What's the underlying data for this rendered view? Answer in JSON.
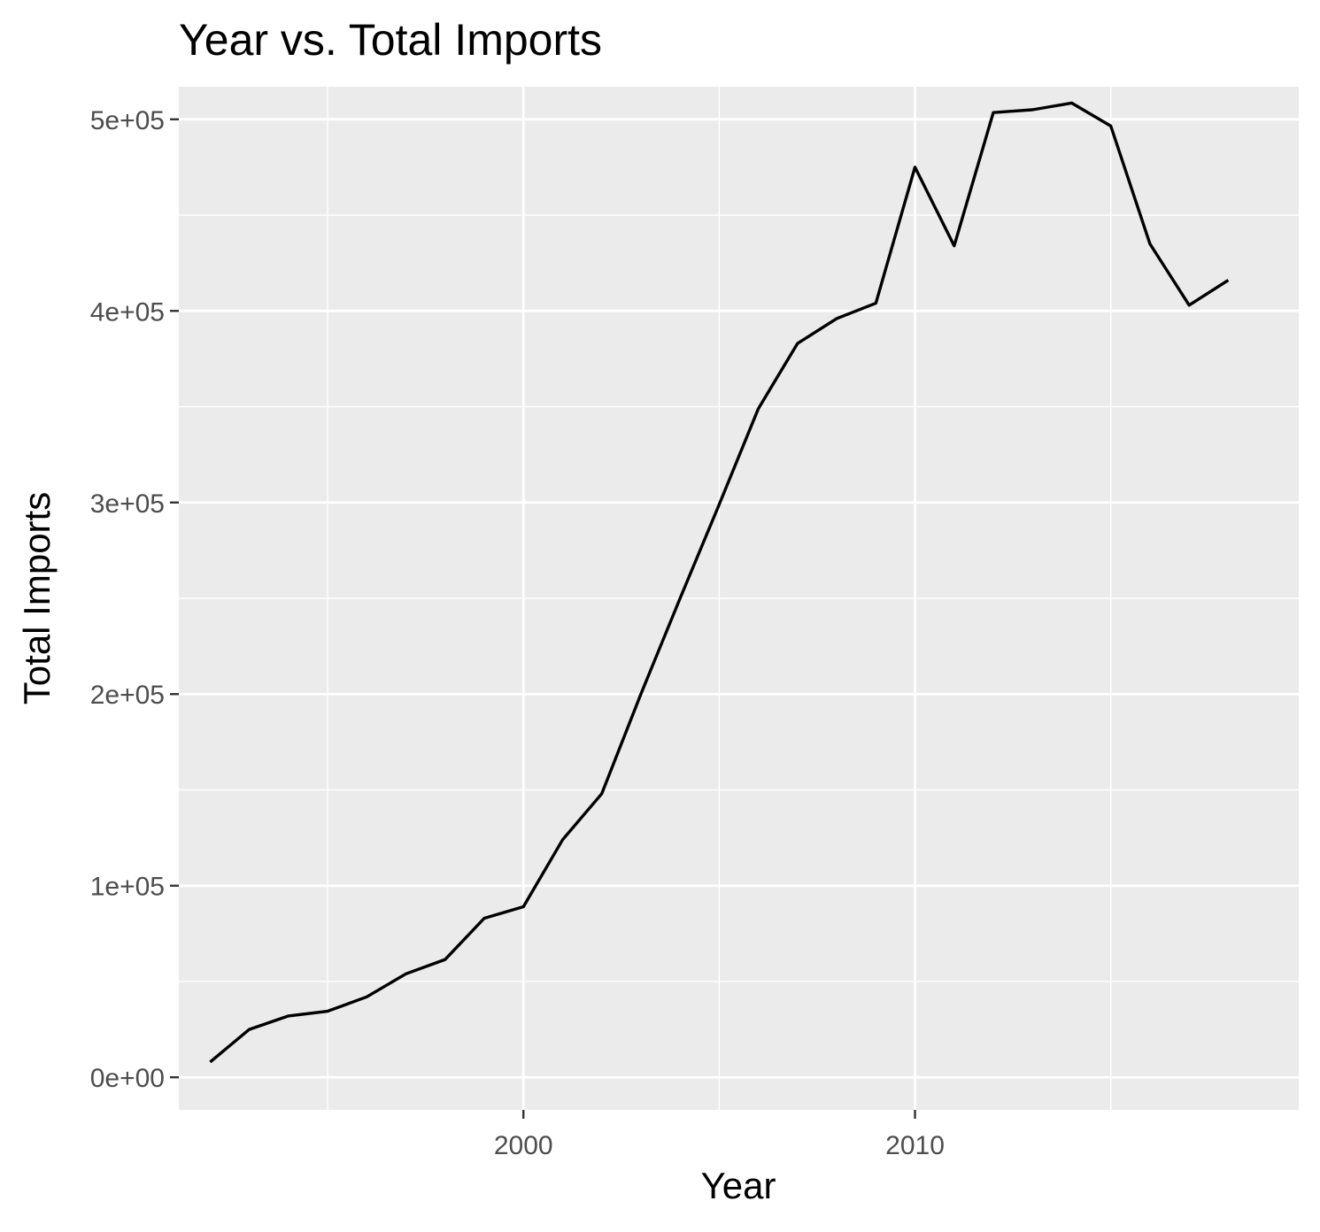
{
  "chart_data": {
    "type": "line",
    "title": "Year vs. Total Imports",
    "xlabel": "Year",
    "ylabel": "Total Imports",
    "x_ticks": [
      2000,
      2010
    ],
    "x_tick_labels": [
      "2000",
      "2010"
    ],
    "y_ticks": [
      0,
      100000,
      200000,
      300000,
      400000,
      500000
    ],
    "y_tick_labels": [
      "0e+00",
      "1e+05",
      "2e+05",
      "3e+05",
      "4e+05",
      "5e+05"
    ],
    "xlim": [
      1991.2,
      2019.8
    ],
    "ylim": [
      -17000,
      517000
    ],
    "grid": true,
    "legend": "none",
    "colors": {
      "panel_background": "#ebebeb",
      "grid_major": "#ffffff",
      "grid_minor": "#ffffff",
      "line": "#000000",
      "tick_label": "#4d4d4d"
    },
    "series": [
      {
        "x": [
          1992,
          1993,
          1994,
          1995,
          1996,
          1997,
          1998,
          1999,
          2000,
          2001,
          2002,
          2003,
          2004,
          2005,
          2006,
          2007,
          2008,
          2009,
          2010,
          2011,
          2012,
          2013,
          2014,
          2015,
          2016,
          2017,
          2018
        ],
        "values": [
          8000,
          25000,
          32000,
          34500,
          42000,
          54000,
          61500,
          83000,
          89000,
          124000,
          148000,
          200000,
          250000,
          299000,
          349000,
          383000,
          396000,
          404000,
          475000,
          434000,
          503500,
          505000,
          508500,
          496500,
          435000,
          403000,
          416000
        ]
      }
    ]
  }
}
